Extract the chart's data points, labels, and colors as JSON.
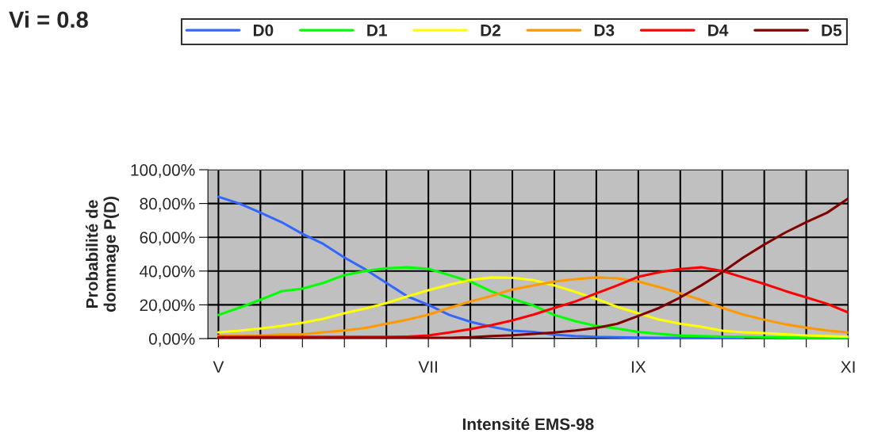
{
  "chart_data": {
    "type": "line",
    "title": "Vi = 0.8",
    "xlabel": "Intensité EMS-98",
    "ylabel": "Probabilité de\ndommage P(D)",
    "categories": [
      "V",
      null,
      null,
      null,
      null,
      null,
      null,
      null,
      null,
      null,
      "VII",
      null,
      null,
      null,
      null,
      null,
      null,
      null,
      null,
      null,
      "IX",
      null,
      null,
      null,
      null,
      null,
      null,
      null,
      null,
      null,
      "XI"
    ],
    "series": [
      {
        "name": "D0",
        "color": "#3366ff",
        "values": [
          84,
          80,
          74.6,
          69,
          62,
          56,
          48,
          41,
          33,
          25,
          20,
          14,
          10,
          7,
          4.7,
          4,
          2.3,
          1.5,
          1,
          0.8,
          0.6,
          0.5,
          0.5,
          0.5,
          0.5,
          0.5,
          null,
          null,
          null,
          null,
          null
        ]
      },
      {
        "name": "D1",
        "color": "#00ff00",
        "values": [
          14,
          18.3,
          23,
          28,
          29.6,
          33,
          37.6,
          40,
          41.7,
          42.2,
          41.3,
          37.6,
          33.8,
          28,
          23.5,
          19.7,
          14,
          10.3,
          7.5,
          6,
          4,
          2.8,
          1.8,
          1.5,
          1.2,
          1,
          0.8,
          0.7,
          0.6,
          0.5,
          0.5
        ]
      },
      {
        "name": "D2",
        "color": "#ffff00",
        "values": [
          3.7,
          4.7,
          6,
          7.5,
          9.4,
          11.7,
          15,
          17.8,
          21,
          25,
          28.6,
          31.9,
          34.7,
          36.2,
          36,
          34.6,
          31.5,
          27.7,
          23.5,
          18.8,
          15,
          11.2,
          8.8,
          7,
          4.7,
          3.7,
          3.3,
          2.5,
          1.9,
          1.5,
          1.2
        ]
      },
      {
        "name": "D3",
        "color": "#ff9900",
        "values": [
          1.7,
          1.7,
          1.8,
          2.4,
          2.6,
          3.7,
          4.8,
          6.3,
          8.8,
          11.2,
          14.2,
          18.2,
          22,
          25.2,
          29.1,
          31.5,
          33.8,
          35.2,
          36.2,
          35.7,
          33.8,
          30.5,
          26.8,
          22.9,
          18.2,
          14.2,
          11.2,
          8.5,
          6.5,
          4.8,
          3.6
        ]
      },
      {
        "name": "D4",
        "color": "#ff0000",
        "values": [
          1,
          1,
          1,
          1,
          1,
          1,
          1,
          1,
          1,
          1.2,
          1.9,
          3.6,
          5.6,
          8,
          10.8,
          14.2,
          18.2,
          22,
          26.8,
          31.5,
          36.6,
          39.3,
          41.2,
          42.2,
          40,
          36.2,
          32.4,
          28.2,
          24.4,
          20.6,
          15.5
        ]
      },
      {
        "name": "D5",
        "color": "#800000",
        "values": [
          0.5,
          0.5,
          0.5,
          0.5,
          0.5,
          0.5,
          0.5,
          0.5,
          0.5,
          0.5,
          0.5,
          0.5,
          0.8,
          1.5,
          2,
          2.8,
          3.6,
          4.8,
          6.3,
          8.8,
          13.4,
          18.2,
          24.4,
          31.5,
          39.3,
          48,
          55.7,
          62.8,
          69,
          74.6,
          83
        ]
      }
    ],
    "ylim": [
      0,
      100
    ],
    "yticks": [
      {
        "value": 0,
        "label": "0,00%"
      },
      {
        "value": 20,
        "label": "20,00%"
      },
      {
        "value": 40,
        "label": "40,00%"
      },
      {
        "value": 60,
        "label": "60,00%"
      },
      {
        "value": 80,
        "label": "80,00%"
      },
      {
        "value": 100,
        "label": "100,00%"
      }
    ],
    "grid": true,
    "legend": "top right",
    "marker": "none",
    "line_style": "solid"
  }
}
